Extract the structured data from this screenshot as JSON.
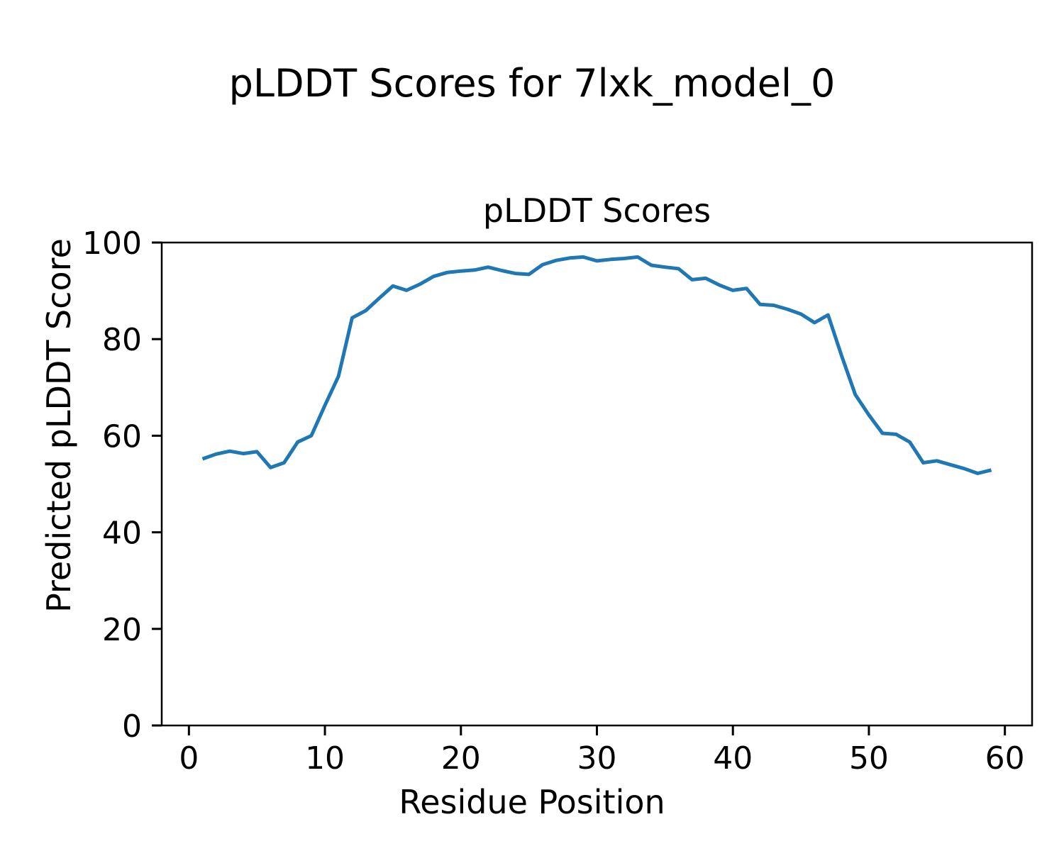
{
  "figure_title": "pLDDT Scores for 7lxk_model_0",
  "chart_data": {
    "type": "line",
    "title": "pLDDT Scores",
    "xlabel": "Residue Position",
    "ylabel": "Predicted pLDDT Score",
    "x": [
      1,
      2,
      3,
      4,
      5,
      6,
      7,
      8,
      9,
      10,
      11,
      12,
      13,
      14,
      15,
      16,
      17,
      18,
      19,
      20,
      21,
      22,
      23,
      24,
      25,
      26,
      27,
      28,
      29,
      30,
      31,
      32,
      33,
      34,
      35,
      36,
      37,
      38,
      39,
      40,
      41,
      42,
      43,
      44,
      45,
      46,
      47,
      48,
      49,
      50,
      51,
      52,
      53,
      54,
      55,
      56,
      57,
      58,
      59
    ],
    "y": [
      55.2,
      56.2,
      56.8,
      56.3,
      56.7,
      53.4,
      54.4,
      58.7,
      60.0,
      66.3,
      72.3,
      84.4,
      85.9,
      88.5,
      91.0,
      90.1,
      91.4,
      93.0,
      93.8,
      94.1,
      94.3,
      94.9,
      94.2,
      93.6,
      93.4,
      95.4,
      96.3,
      96.8,
      97.0,
      96.2,
      96.5,
      96.7,
      97.0,
      95.3,
      94.9,
      94.6,
      92.3,
      92.6,
      91.2,
      90.1,
      90.5,
      87.2,
      87.0,
      86.2,
      85.2,
      83.4,
      85.0,
      76.5,
      68.5,
      64.3,
      60.5,
      60.3,
      58.7,
      54.4,
      54.8,
      54.0,
      53.2,
      52.2,
      52.9
    ],
    "xlim": [
      -2,
      62
    ],
    "ylim": [
      0,
      100
    ],
    "xticks": [
      0,
      10,
      20,
      30,
      40,
      50,
      60
    ],
    "yticks": [
      0,
      20,
      40,
      60,
      80,
      100
    ],
    "line_color": "#1f77b4",
    "axis_color": "#000000",
    "grid": false,
    "legend_position": "none"
  }
}
